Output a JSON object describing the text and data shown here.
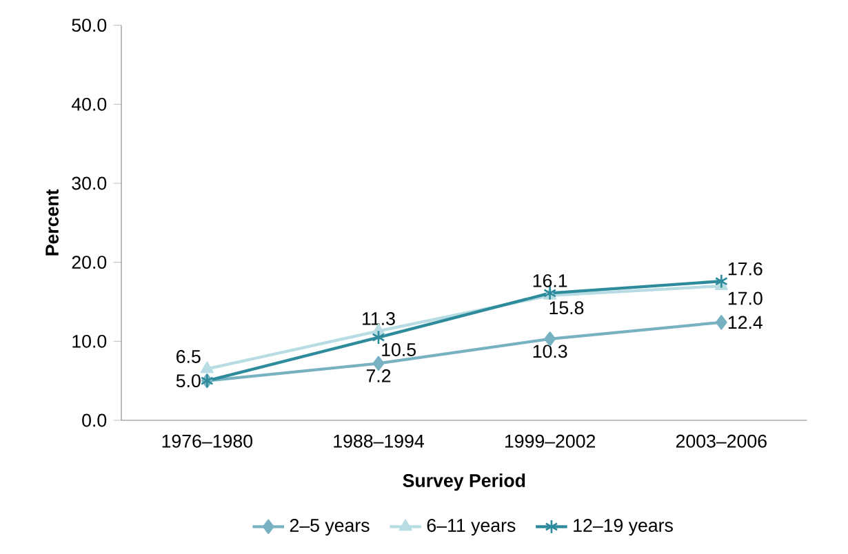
{
  "chart_data": {
    "type": "line",
    "xlabel": "Survey Period",
    "ylabel": "Percent",
    "categories": [
      "1976–1980",
      "1988–1994",
      "1999–2002",
      "2003–2006"
    ],
    "ylim": [
      0,
      50
    ],
    "yticks": [
      {
        "value": 0,
        "label": "0.0"
      },
      {
        "value": 10,
        "label": "10.0"
      },
      {
        "value": 20,
        "label": "20.0"
      },
      {
        "value": 30,
        "label": "30.0"
      },
      {
        "value": 40,
        "label": "40.0"
      },
      {
        "value": 50,
        "label": "50.0"
      }
    ],
    "grid": false,
    "legend": "bottom",
    "series": [
      {
        "name": "2–5 years",
        "color": "#78b2c2",
        "marker": "diamond",
        "values": [
          5.0,
          7.2,
          10.3,
          12.4
        ],
        "value_labels": [
          null,
          "7.2",
          "10.3",
          "12.4"
        ]
      },
      {
        "name": "6–11 years",
        "color": "#b7dce3",
        "marker": "triangle",
        "values": [
          6.5,
          11.3,
          15.8,
          17.0
        ],
        "value_labels": [
          "6.5",
          "11.3",
          "15.8",
          "17.0"
        ]
      },
      {
        "name": "12–19 years",
        "color": "#2e8b9b",
        "marker": "cross",
        "values": [
          5.0,
          10.5,
          16.1,
          17.6
        ],
        "value_labels": [
          "5.0",
          "10.5",
          "16.1",
          "17.6"
        ]
      }
    ]
  }
}
